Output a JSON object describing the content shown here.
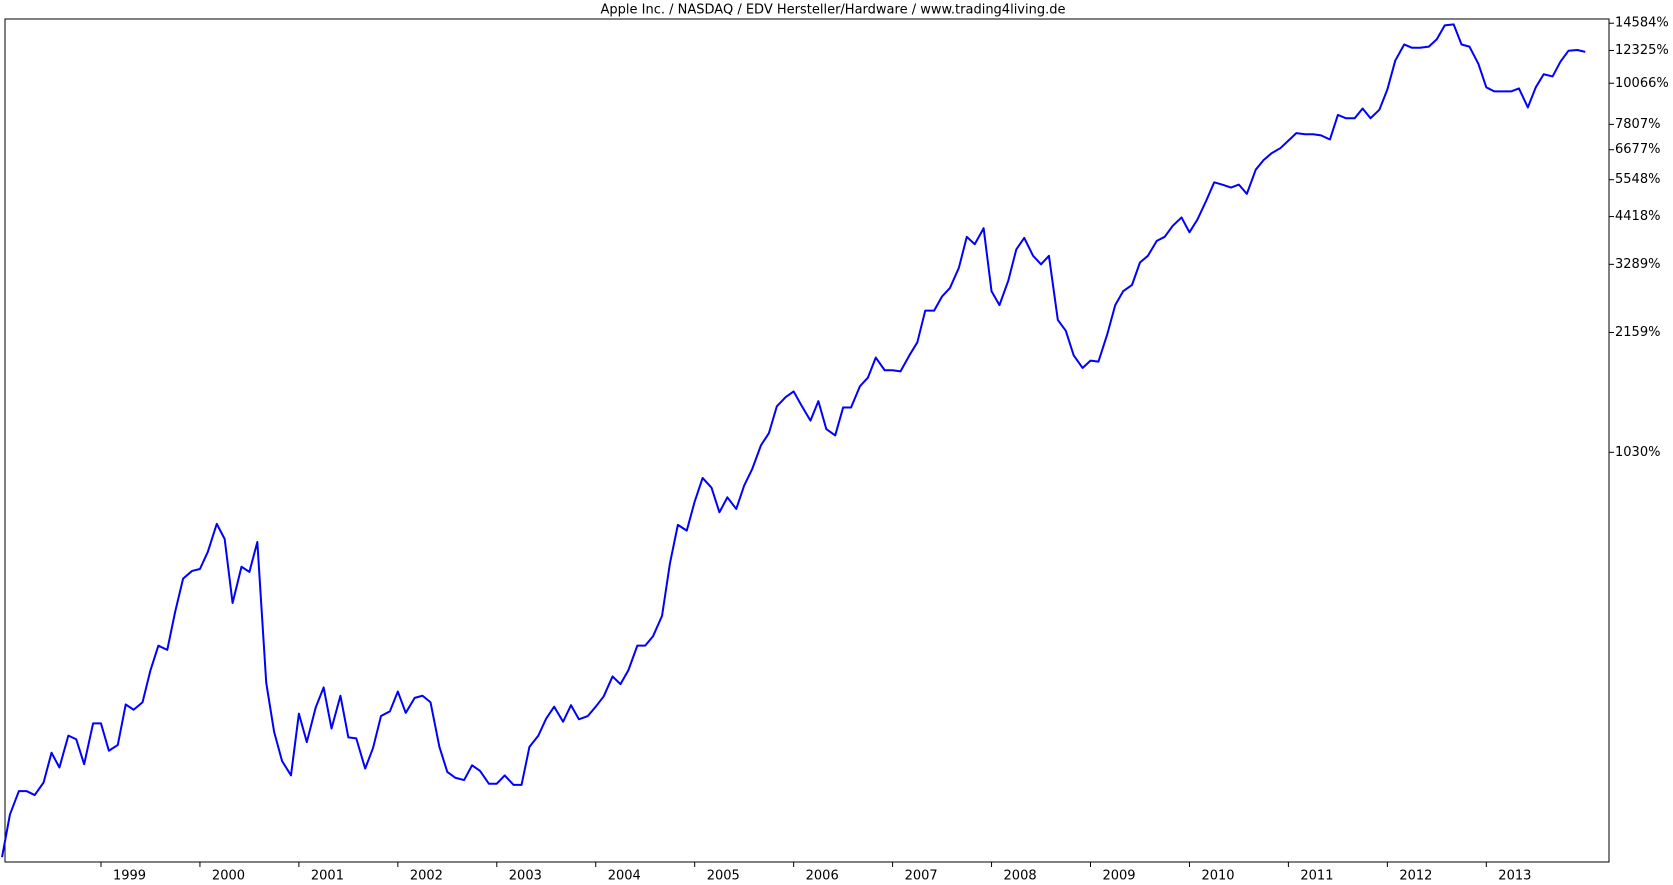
{
  "chart_data": {
    "type": "line",
    "title": "Apple Inc. / NASDAQ / EDV Hersteller/Hardware / www.trading4living.de",
    "x": [
      1998.0,
      1998.08,
      1998.17,
      1998.25,
      1998.33,
      1998.42,
      1998.5,
      1998.58,
      1998.67,
      1998.75,
      1998.83,
      1998.92,
      1999.0,
      1999.08,
      1999.17,
      1999.25,
      1999.33,
      1999.42,
      1999.5,
      1999.58,
      1999.67,
      1999.75,
      1999.83,
      1999.92,
      2000.0,
      2000.08,
      2000.17,
      2000.25,
      2000.33,
      2000.42,
      2000.5,
      2000.58,
      2000.67,
      2000.75,
      2000.83,
      2000.92,
      2001.0,
      2001.08,
      2001.17,
      2001.25,
      2001.33,
      2001.42,
      2001.5,
      2001.58,
      2001.67,
      2001.75,
      2001.83,
      2001.92,
      2002.0,
      2002.08,
      2002.17,
      2002.25,
      2002.33,
      2002.42,
      2002.5,
      2002.58,
      2002.67,
      2002.75,
      2002.83,
      2002.92,
      2003.0,
      2003.08,
      2003.17,
      2003.25,
      2003.33,
      2003.42,
      2003.5,
      2003.58,
      2003.67,
      2003.75,
      2003.83,
      2003.92,
      2004.0,
      2004.08,
      2004.17,
      2004.25,
      2004.33,
      2004.42,
      2004.5,
      2004.58,
      2004.67,
      2004.75,
      2004.83,
      2004.92,
      2005.0,
      2005.08,
      2005.17,
      2005.25,
      2005.33,
      2005.42,
      2005.5,
      2005.58,
      2005.67,
      2005.75,
      2005.83,
      2005.92,
      2006.0,
      2006.08,
      2006.17,
      2006.25,
      2006.33,
      2006.42,
      2006.5,
      2006.58,
      2006.67,
      2006.75,
      2006.83,
      2006.92,
      2007.0,
      2007.08,
      2007.17,
      2007.25,
      2007.33,
      2007.42,
      2007.5,
      2007.58,
      2007.67,
      2007.75,
      2007.83,
      2007.92,
      2008.0,
      2008.08,
      2008.17,
      2008.25,
      2008.33,
      2008.42,
      2008.5,
      2008.58,
      2008.67,
      2008.75,
      2008.83,
      2008.92,
      2009.0,
      2009.08,
      2009.17,
      2009.25,
      2009.33,
      2009.42,
      2009.5,
      2009.58,
      2009.67,
      2009.75,
      2009.83,
      2009.92,
      2010.0,
      2010.08,
      2010.17,
      2010.25,
      2010.33,
      2010.42,
      2010.5,
      2010.58,
      2010.67,
      2010.75,
      2010.83,
      2010.92,
      2011.0,
      2011.08,
      2011.17,
      2011.25,
      2011.33,
      2011.42,
      2011.5,
      2011.58,
      2011.67,
      2011.75,
      2011.83,
      2011.92,
      2012.0,
      2012.08,
      2012.17,
      2012.25,
      2012.33,
      2012.42,
      2012.5,
      2012.58,
      2012.67,
      2012.75,
      2012.83,
      2012.92,
      2013.0,
      2013.08,
      2013.17,
      2013.25,
      2013.33,
      2013.42,
      2013.5,
      2013.58,
      2013.67,
      2013.75,
      2013.83,
      2013.92,
      2014.0
    ],
    "series": [
      {
        "color": "#0000ff",
        "values": [
          84.5,
          110,
          127,
          127,
          124,
          134,
          161,
          147,
          179,
          175,
          150,
          193,
          193,
          163,
          169,
          217,
          210,
          220,
          268,
          312,
          304,
          385,
          472,
          495,
          501,
          557,
          662,
          603,
          406,
          508,
          492,
          592,
          248,
          183,
          153,
          140,
          205,
          172,
          213,
          241,
          187,
          229,
          177,
          176,
          146,
          166,
          202,
          208,
          235,
          206,
          226,
          229,
          220,
          167,
          143,
          138,
          136,
          149,
          144,
          133,
          133,
          140,
          132,
          132,
          167,
          179,
          199,
          214,
          195,
          216,
          198,
          202,
          214,
          228,
          258,
          246,
          268,
          312,
          312,
          331,
          375,
          519,
          658,
          635,
          760,
          879,
          828,
          711,
          780,
          726,
          839,
          927,
          1076,
          1159,
          1368,
          1449,
          1500,
          1374,
          1253,
          1413,
          1189,
          1143,
          1358,
          1358,
          1549,
          1633,
          1849,
          1710,
          1710,
          1698,
          1875,
          2032,
          2472,
          2472,
          2698,
          2843,
          3221,
          3899,
          3724,
          4111,
          2786,
          2557,
          2978,
          3606,
          3873,
          3467,
          3289,
          3467,
          2333,
          2183,
          1875,
          1734,
          1815,
          1803,
          2138,
          2557,
          2786,
          2897,
          3327,
          3467,
          3802,
          3899,
          4169,
          4395,
          4009,
          4335,
          4875,
          5458,
          5383,
          5284,
          5383,
          5082,
          5902,
          6266,
          6531,
          6745,
          7063,
          7396,
          7345,
          7345,
          7295,
          7112,
          8279,
          8110,
          8110,
          8610,
          8110,
          8551,
          9683,
          11580,
          12790,
          12530,
          12530,
          12620,
          13210,
          14390,
          14480,
          12790,
          12620,
          11350,
          9817,
          9572,
          9572,
          9572,
          9750,
          8670,
          9817,
          10640,
          10500,
          11510,
          12300,
          12360,
          12220
        ]
      }
    ],
    "xlim": [
      1998.03,
      2014.24
    ],
    "xticks": [
      1999,
      2000,
      2001,
      2002,
      2003,
      2004,
      2005,
      2006,
      2007,
      2008,
      2009,
      2010,
      2011,
      2012,
      2013
    ],
    "ylim": [
      82,
      14970
    ],
    "yscale": "log",
    "yticks": [
      {
        "value": 1030,
        "label": "1030%"
      },
      {
        "value": 2159,
        "label": "2159%"
      },
      {
        "value": 3289,
        "label": "3289%"
      },
      {
        "value": 4418,
        "label": "4418%"
      },
      {
        "value": 5548,
        "label": "5548%"
      },
      {
        "value": 6677,
        "label": "6677%"
      },
      {
        "value": 7807,
        "label": "7807%"
      },
      {
        "value": 10066,
        "label": "10066%"
      },
      {
        "value": 12325,
        "label": "12325%"
      },
      {
        "value": 14584,
        "label": "14584%"
      }
    ]
  }
}
